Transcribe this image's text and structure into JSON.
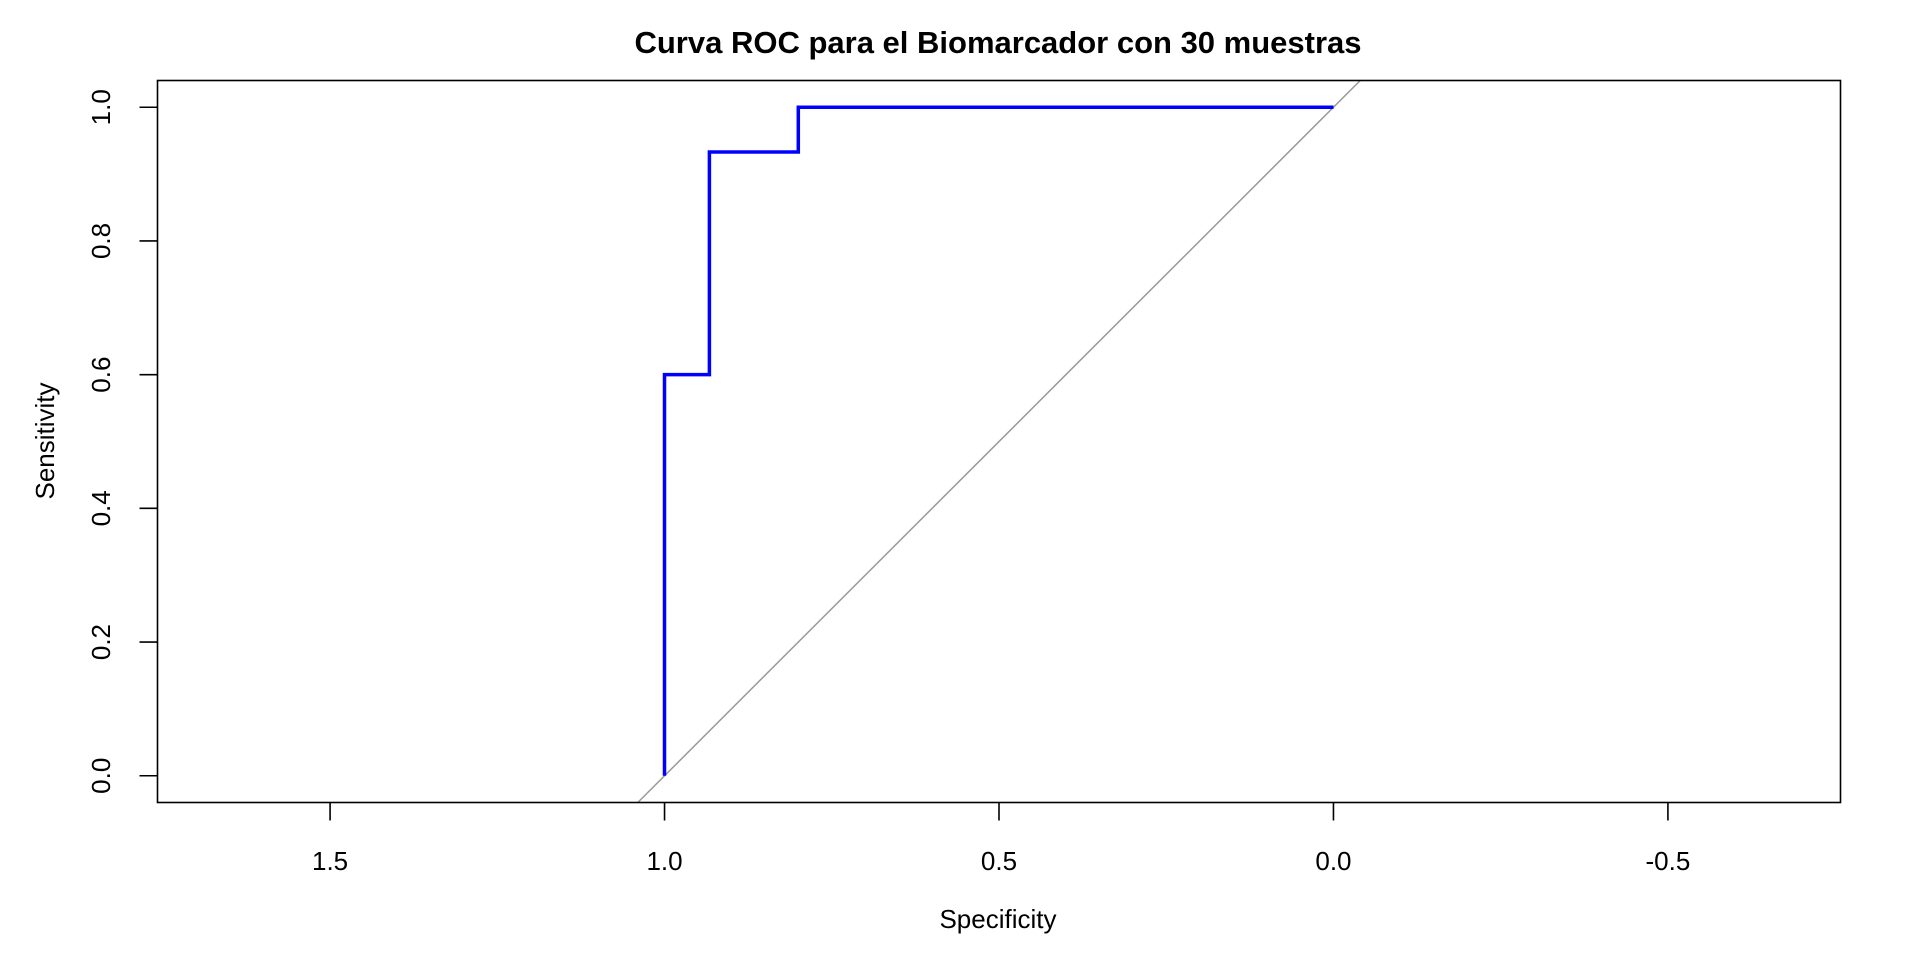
{
  "chart_data": {
    "type": "line",
    "title": "Curva ROC para el Biomarcador con 30 muestras",
    "xlabel": "Specificity",
    "ylabel": "Sensitivity",
    "xlim": [
      1.758,
      -0.758
    ],
    "ylim": [
      -0.04,
      1.04
    ],
    "x_reversed": true,
    "grid": false,
    "xticks": [
      1.5,
      1.0,
      0.5,
      0.0,
      -0.5
    ],
    "xtick_labels": [
      "1.5",
      "1.0",
      "0.5",
      "0.0",
      "-0.5"
    ],
    "yticks": [
      0.0,
      0.2,
      0.4,
      0.6,
      0.8,
      1.0
    ],
    "ytick_labels": [
      "0.0",
      "0.2",
      "0.4",
      "0.6",
      "0.8",
      "1.0"
    ],
    "series": [
      {
        "color": "#0000ff",
        "specificity": [
          1.0,
          1.0,
          0.933,
          0.933,
          0.8,
          0.8,
          0.0
        ],
        "sensitivity": [
          0.0,
          0.6,
          0.6,
          0.933,
          0.933,
          1.0,
          1.0
        ]
      }
    ],
    "reference_line": {
      "type": "diagonal",
      "intercept": 1,
      "slope": -1,
      "color": "#999999"
    }
  }
}
